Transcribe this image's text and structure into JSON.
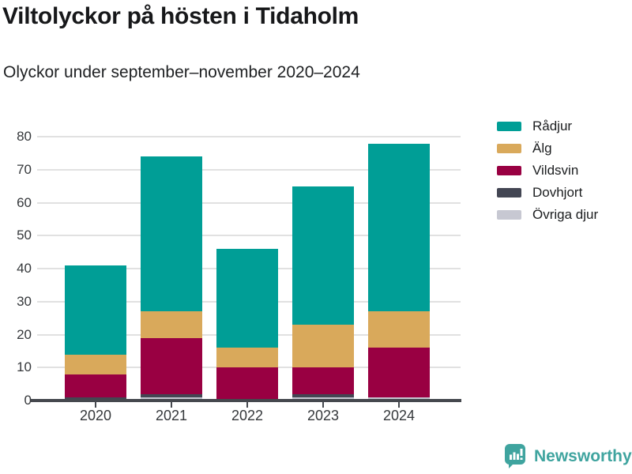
{
  "chart_data": {
    "type": "bar",
    "stacked": true,
    "title": "Viltolyckor på hösten i Tidaholm",
    "subtitle": "Olyckor under september–november 2020–2024",
    "categories": [
      "2020",
      "2021",
      "2022",
      "2023",
      "2024"
    ],
    "series": [
      {
        "name": "Rådjur",
        "color": "#009e96",
        "values": [
          27,
          47,
          30,
          42,
          51
        ]
      },
      {
        "name": "Älg",
        "color": "#d9a95b",
        "values": [
          6,
          8,
          6,
          13,
          11
        ]
      },
      {
        "name": "Vildsvin",
        "color": "#990042",
        "values": [
          7,
          17,
          10,
          8,
          15
        ]
      },
      {
        "name": "Dovhjort",
        "color": "#434653",
        "values": [
          1,
          1,
          0,
          1,
          0
        ]
      },
      {
        "name": "Övriga djur",
        "color": "#c7c8d2",
        "values": [
          0,
          1,
          0,
          1,
          1
        ]
      }
    ],
    "totals": [
      41,
      74,
      46,
      65,
      78
    ],
    "ylim": [
      0,
      80
    ],
    "yticks": [
      0,
      10,
      20,
      30,
      40,
      50,
      60,
      70,
      80
    ],
    "xlabel": "",
    "ylabel": "",
    "grid": "horizontal",
    "legend_position": "right",
    "stack_order": "series listed top-of-stack first; legend shows same order",
    "colors": {
      "gridline": "#e1e1e1",
      "axis": "#45484e",
      "tick_label": "#35383b"
    }
  },
  "branding": {
    "name": "Newsworthy",
    "color": "#3fa49f",
    "icon": "bar-chart-speech-bubble"
  }
}
